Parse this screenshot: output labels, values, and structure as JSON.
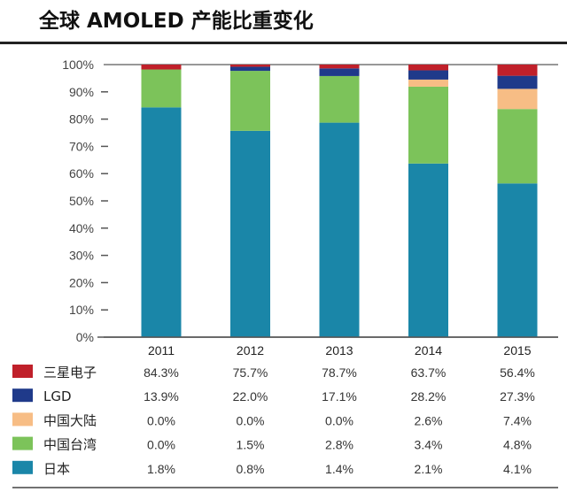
{
  "chart_data": {
    "type": "bar",
    "stacked": true,
    "title": "全球 AMOLED 产能比重变化",
    "categories": [
      "2011",
      "2012",
      "2013",
      "2014",
      "2015"
    ],
    "ylim": [
      0,
      100
    ],
    "yticks": [
      "0%",
      "10%",
      "20%",
      "30%",
      "40%",
      "50%",
      "60%",
      "70%",
      "80%",
      "90%",
      "100%"
    ],
    "series": [
      {
        "name": "三星电子",
        "legend_color": "#c0202a",
        "bar_color": "#1a86a8",
        "values": [
          84.3,
          75.7,
          78.7,
          63.7,
          56.4
        ],
        "labels": [
          "84.3%",
          "75.7%",
          "78.7%",
          "63.7%",
          "56.4%"
        ]
      },
      {
        "name": "LGD",
        "legend_color": "#1f3a8a",
        "bar_color": "#7cc35a",
        "values": [
          13.9,
          22.0,
          17.1,
          28.2,
          27.3
        ],
        "labels": [
          "13.9%",
          "22.0%",
          "17.1%",
          "28.2%",
          "27.3%"
        ]
      },
      {
        "name": "中国大陆",
        "legend_color": "#f7bd85",
        "bar_color": "#f7bd85",
        "values": [
          0.0,
          0.0,
          0.0,
          2.6,
          7.4
        ],
        "labels": [
          "0.0%",
          "0.0%",
          "0.0%",
          "2.6%",
          "7.4%"
        ]
      },
      {
        "name": "中国台湾",
        "legend_color": "#7cc35a",
        "bar_color": "#1f3a8a",
        "values": [
          0.0,
          1.5,
          2.8,
          3.4,
          4.8
        ],
        "labels": [
          "0.0%",
          "1.5%",
          "2.8%",
          "3.4%",
          "4.8%"
        ]
      },
      {
        "name": "日本",
        "legend_color": "#1a86a8",
        "bar_color": "#c0202a",
        "values": [
          1.8,
          0.8,
          1.4,
          2.1,
          4.1
        ],
        "labels": [
          "1.8%",
          "0.8%",
          "1.4%",
          "2.1%",
          "4.1%"
        ]
      }
    ],
    "grid": false,
    "legend": "table-below"
  }
}
